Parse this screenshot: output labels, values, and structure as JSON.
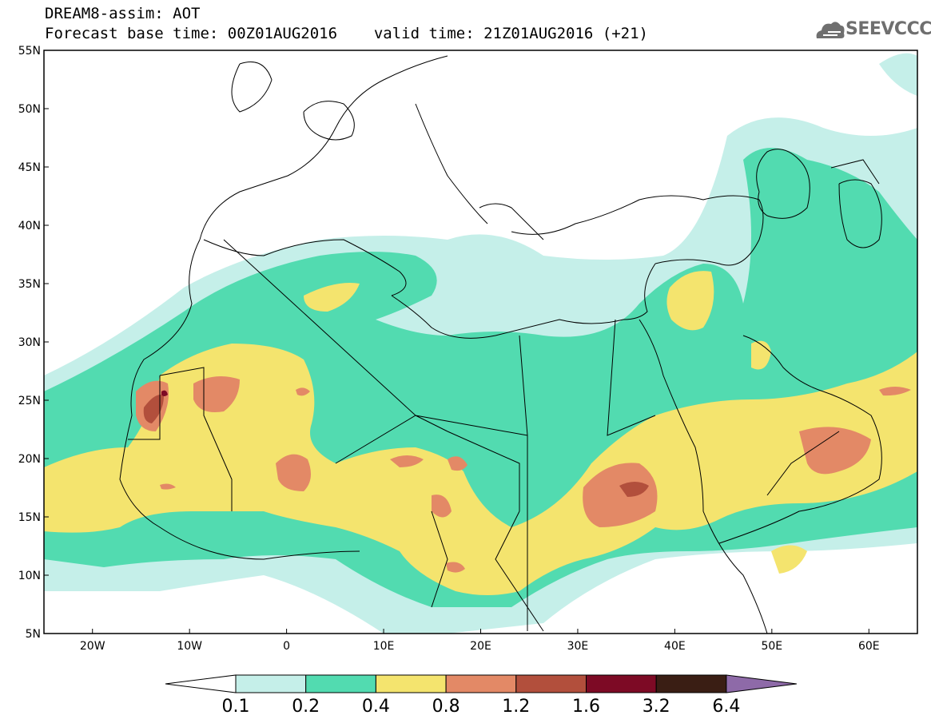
{
  "header": {
    "title": "DREAM8-assim: AOT",
    "base_time_label": "Forecast base time: 00Z01AUG2016",
    "valid_time_label": "valid time: 21Z01AUG2016 (+21)",
    "logo_text": "SEEVCCC"
  },
  "map": {
    "variable": "Aerosol Optical Thickness",
    "lon_range": [
      -25,
      65
    ],
    "lat_range": [
      5,
      55
    ],
    "lon_ticks": [
      "20W",
      "10W",
      "0",
      "10E",
      "20E",
      "30E",
      "40E",
      "50E",
      "60E"
    ],
    "lat_ticks": [
      "55N",
      "50N",
      "45N",
      "40N",
      "35N",
      "30N",
      "25N",
      "20N",
      "15N",
      "10N",
      "5N"
    ]
  },
  "colorbar": {
    "levels": [
      "0.1",
      "0.2",
      "0.4",
      "0.8",
      "1.2",
      "1.6",
      "3.2",
      "6.4"
    ],
    "colors": [
      "#ffffff",
      "#c5efe9",
      "#52dbb0",
      "#f4e46e",
      "#e38966",
      "#b24f3c",
      "#7d0a25",
      "#3a1e14",
      "#8e6aa8"
    ]
  }
}
